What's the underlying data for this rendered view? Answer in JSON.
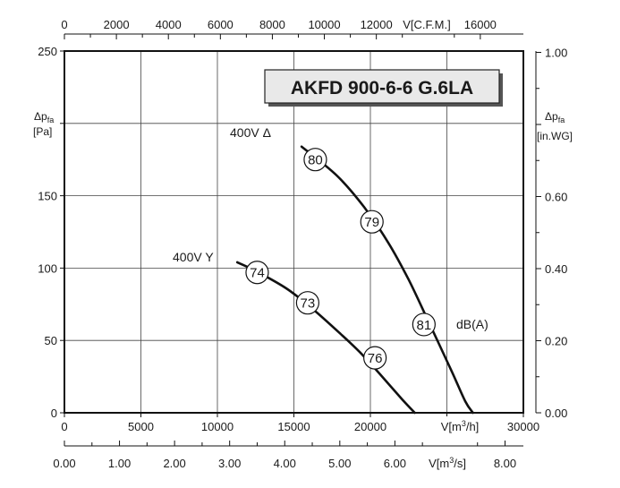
{
  "chart_data": {
    "type": "line",
    "title": "AKFD 900-6-6 G.6LA",
    "x": {
      "label_parts": [
        "V[m",
        "3",
        "/h]"
      ],
      "ticks": [
        0,
        5000,
        10000,
        15000,
        20000,
        25000,
        30000
      ],
      "tick_labels": [
        "0",
        "5000",
        "10000",
        "15000",
        "20000",
        "25000",
        "30000"
      ],
      "range": [
        0,
        30000
      ]
    },
    "x_top": {
      "label": "V[C.F.M.]",
      "ticks": [
        0,
        2000,
        4000,
        6000,
        8000,
        10000,
        12000,
        16000
      ],
      "tick_labels": [
        "0",
        "2000",
        "4000",
        "6000",
        "8000",
        "10000",
        "12000",
        "16000"
      ],
      "minor_ticks": [
        1000,
        3000,
        5000,
        7000,
        9000,
        11000,
        13000,
        15000
      ],
      "range": [
        0,
        17657
      ]
    },
    "x_bottom2": {
      "label_parts": [
        "V[m",
        "3",
        "/s]"
      ],
      "ticks": [
        0,
        1,
        2,
        3,
        4,
        5,
        6,
        8
      ],
      "tick_labels": [
        "0.00",
        "1.00",
        "2.00",
        "3.00",
        "4.00",
        "5.00",
        "6.00",
        "8.00"
      ],
      "minor_ticks": [
        0.5,
        1.5,
        2.5,
        3.5,
        4.5,
        5.5,
        6.5,
        7.5
      ],
      "range": [
        0,
        8.333
      ]
    },
    "y": {
      "label_main": "Δp",
      "label_sub": "fa",
      "unit": "[Pa]",
      "ticks": [
        0,
        50,
        100,
        150,
        200,
        250
      ],
      "tick_labels": [
        "0",
        "50",
        "100",
        "150",
        "",
        "250"
      ],
      "range": [
        0,
        250
      ]
    },
    "y_right": {
      "label_main": "Δp",
      "label_sub": "fa",
      "unit": "[in.WG]",
      "ticks": [
        0,
        0.2,
        0.4,
        0.6,
        0.8,
        1.0
      ],
      "tick_labels": [
        "0.00",
        "0.20",
        "0.40",
        "0.60",
        "",
        "1.00"
      ],
      "minor_ticks": [
        0.1,
        0.3,
        0.5,
        0.7,
        0.9
      ],
      "range": [
        0,
        1.0037
      ]
    },
    "grid": true,
    "series": [
      {
        "name": "400V Δ",
        "points": [
          [
            15500,
            184
          ],
          [
            17800,
            164
          ],
          [
            19600,
            142
          ],
          [
            21200,
            117
          ],
          [
            22500,
            92
          ],
          [
            23800,
            63
          ],
          [
            25300,
            29
          ],
          [
            26200,
            8
          ],
          [
            26700,
            0
          ]
        ],
        "markers": [
          {
            "x": 16400,
            "y": 175,
            "label": "80"
          },
          {
            "x": 20100,
            "y": 132,
            "label": "79"
          },
          {
            "x": 23500,
            "y": 61,
            "label": "81"
          }
        ]
      },
      {
        "name": "400V Y",
        "points": [
          [
            11300,
            104
          ],
          [
            12500,
            98
          ],
          [
            14500,
            86
          ],
          [
            16200,
            72
          ],
          [
            18000,
            55
          ],
          [
            19300,
            42
          ],
          [
            20600,
            27
          ],
          [
            22100,
            9
          ],
          [
            22900,
            0
          ]
        ],
        "markers": [
          {
            "x": 12600,
            "y": 97,
            "label": "74"
          },
          {
            "x": 15900,
            "y": 76,
            "label": "73"
          },
          {
            "x": 20300,
            "y": 38,
            "label": "76"
          }
        ]
      }
    ],
    "annotation": "dB(A)"
  }
}
